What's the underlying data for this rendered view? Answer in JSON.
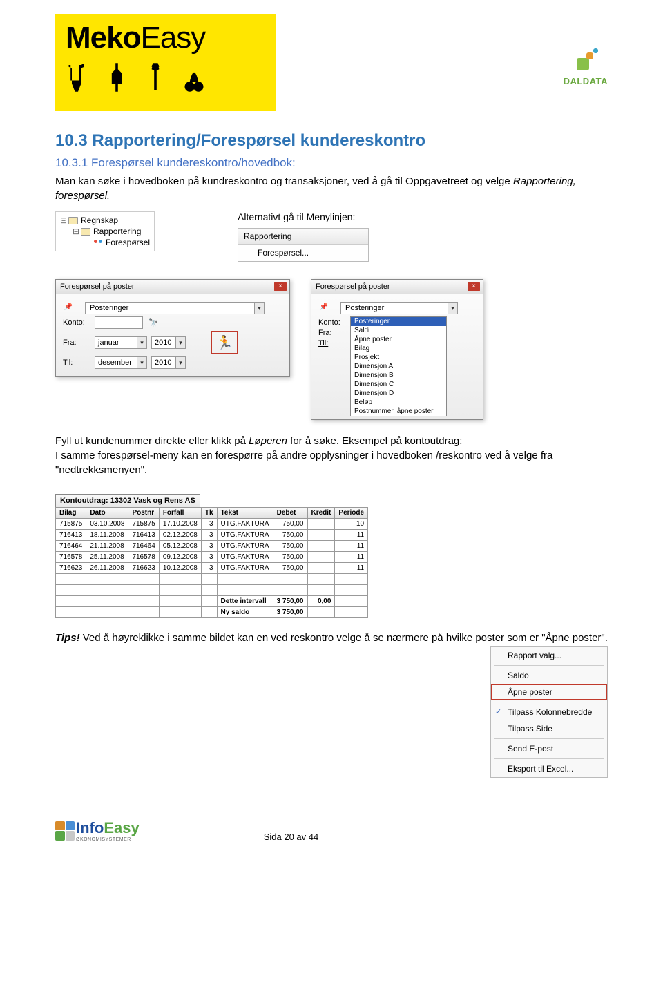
{
  "logo": {
    "brand": "Meko",
    "suffix": "Easy"
  },
  "daldata": {
    "text": "DALDATA"
  },
  "heading": "10.3 Rapportering/Forespørsel kundereskontro",
  "subheading": "10.3.1 Forespørsel kundereskontro/hovedbok:",
  "para1a": "Man kan søke i hovedboken på kundreskontro og transaksjoner, ved å gå til Oppgavetreet og velge ",
  "para1b": "Rapportering, forespørsel.",
  "tree": {
    "n1": "Regnskap",
    "n2": "Rapportering",
    "n3": "Forespørsel"
  },
  "alt_text": "Alternativt gå til Menylinjen:",
  "menu": {
    "title": "Rapportering",
    "item": "Forespørsel..."
  },
  "dialog1": {
    "title": "Forespørsel på poster",
    "combo_val": "Posteringer",
    "konto": "Konto:",
    "fra": "Fra:",
    "til": "Til:",
    "fra_month": "januar",
    "til_month": "desember",
    "fra_year": "2010",
    "til_year": "2010"
  },
  "dialog2": {
    "title": "Forespørsel på poster",
    "combo_val": "Posteringer",
    "konto": "Konto:",
    "fra": "Fra:",
    "til": "Til:",
    "options": [
      "Posteringer",
      "Saldi",
      "Åpne poster",
      "Bilag",
      "Prosjekt",
      "Dimensjon A",
      "Dimensjon B",
      "Dimensjon C",
      "Dimensjon D",
      "Beløp",
      "Postnummer, åpne poster"
    ]
  },
  "para2a": "Fyll ut kundenummer direkte eller klikk på ",
  "para2b": "Løperen",
  "para2c": " for å søke. Eksempel på kontoutdrag:",
  "para3": "I samme forespørsel-meny kan en forespørre på andre opplysninger i hovedboken /reskontro ved å velge fra \"nedtrekksmenyen\".",
  "table": {
    "caption": "Kontoutdrag: 13302 Vask og Rens AS",
    "headers": [
      "Bilag",
      "Dato",
      "Postnr",
      "Forfall",
      "Tk",
      "Tekst",
      "Debet",
      "Kredit",
      "Periode"
    ],
    "rows": [
      [
        "715875",
        "03.10.2008",
        "715875",
        "17.10.2008",
        "3",
        "UTG.FAKTURA",
        "750,00",
        "",
        "10"
      ],
      [
        "716413",
        "18.11.2008",
        "716413",
        "02.12.2008",
        "3",
        "UTG.FAKTURA",
        "750,00",
        "",
        "11"
      ],
      [
        "716464",
        "21.11.2008",
        "716464",
        "05.12.2008",
        "3",
        "UTG.FAKTURA",
        "750,00",
        "",
        "11"
      ],
      [
        "716578",
        "25.11.2008",
        "716578",
        "09.12.2008",
        "3",
        "UTG.FAKTURA",
        "750,00",
        "",
        "11"
      ],
      [
        "716623",
        "26.11.2008",
        "716623",
        "10.12.2008",
        "3",
        "UTG.FAKTURA",
        "750,00",
        "",
        "11"
      ]
    ],
    "interval_label": "Dette intervall",
    "interval_debet": "3 750,00",
    "interval_kredit": "0,00",
    "saldo_label": "Ny saldo",
    "saldo_val": "3 750,00"
  },
  "tips_label": "Tips!",
  "para4": " Ved å høyreklikke i samme bildet kan en ved reskontro velge å se nærmere på hvilke poster som er  \"Åpne poster\".",
  "ctx_menu": {
    "i1": "Rapport valg...",
    "i2": "Saldo",
    "i3": "Åpne poster",
    "i4": "Tilpass Kolonnebredde",
    "i5": "Tilpass Side",
    "i6": "Send E-post",
    "i7": "Eksport til Excel..."
  },
  "footer": {
    "info": "Info",
    "easy": "Easy",
    "sub": "ØKONOMISYSTEMER",
    "page": "Sida 20 av 44"
  }
}
